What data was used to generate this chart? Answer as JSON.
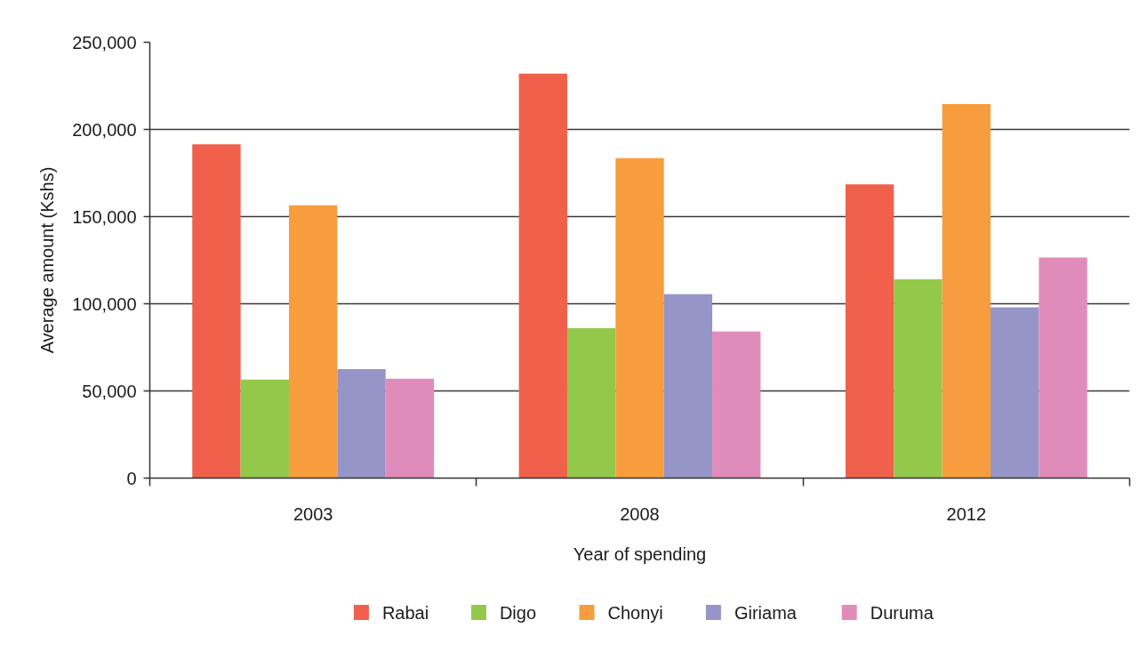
{
  "chart_data": {
    "type": "bar",
    "categories": [
      "2003",
      "2008",
      "2012"
    ],
    "xlabel": "Year of spending",
    "ylabel": "Average amount (Kshs)",
    "ylim": [
      0,
      250000
    ],
    "yticks": [
      0,
      {
        "value": 50000,
        "label": "50,000"
      },
      {
        "value": 100000,
        "label": "100,000"
      },
      {
        "value": 150000,
        "label": "150,000"
      },
      {
        "value": 200000,
        "label": "200,000"
      },
      {
        "value": 250000,
        "label": "250,000"
      }
    ],
    "grid": "y",
    "legend": "bottom",
    "series": [
      {
        "name": "Rabai",
        "color": "#f0604b",
        "values": [
          191500,
          232000,
          168500
        ]
      },
      {
        "name": "Digo",
        "color": "#93c84a",
        "values": [
          56500,
          86000,
          114000
        ]
      },
      {
        "name": "Chonyi",
        "color": "#f79d3d",
        "values": [
          156500,
          183500,
          214500
        ]
      },
      {
        "name": "Giriama",
        "color": "#9595c8",
        "values": [
          62500,
          105500,
          98000
        ]
      },
      {
        "name": "Duruma",
        "color": "#e08cba",
        "values": [
          57000,
          84000,
          126500
        ]
      }
    ]
  }
}
